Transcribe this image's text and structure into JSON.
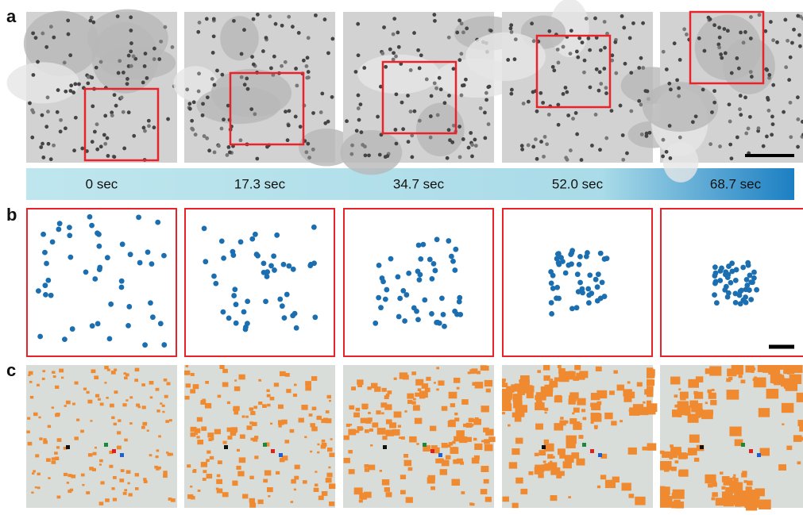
{
  "panel_labels": [
    "a",
    "b",
    "c"
  ],
  "timepoints": [
    "0 sec",
    "17.3 sec",
    "34.7 sec",
    "52.0 sec",
    "68.7 sec"
  ]
}
